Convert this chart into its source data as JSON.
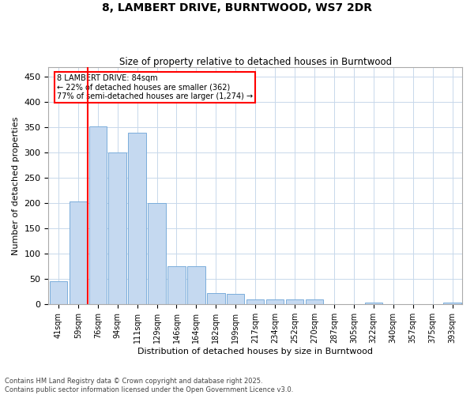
{
  "title_line1": "8, LAMBERT DRIVE, BURNTWOOD, WS7 2DR",
  "title_line2": "Size of property relative to detached houses in Burntwood",
  "xlabel": "Distribution of detached houses by size in Burntwood",
  "ylabel": "Number of detached properties",
  "categories": [
    "41sqm",
    "59sqm",
    "76sqm",
    "94sqm",
    "111sqm",
    "129sqm",
    "146sqm",
    "164sqm",
    "182sqm",
    "199sqm",
    "217sqm",
    "234sqm",
    "252sqm",
    "270sqm",
    "287sqm",
    "305sqm",
    "322sqm",
    "340sqm",
    "357sqm",
    "375sqm",
    "393sqm"
  ],
  "values": [
    45,
    203,
    352,
    300,
    340,
    200,
    75,
    75,
    22,
    20,
    10,
    10,
    10,
    10,
    0,
    0,
    4,
    0,
    0,
    0,
    3
  ],
  "bar_color": "#c5d9f0",
  "bar_edge_color": "#7aaddb",
  "grid_color": "#c8d8eb",
  "background_color": "#ffffff",
  "vline_bar_index": 2,
  "vline_color": "red",
  "annotation_text": "8 LAMBERT DRIVE: 84sqm\n← 22% of detached houses are smaller (362)\n77% of semi-detached houses are larger (1,274) →",
  "annotation_box_color": "red",
  "ylim": [
    0,
    470
  ],
  "yticks": [
    0,
    50,
    100,
    150,
    200,
    250,
    300,
    350,
    400,
    450
  ],
  "footnote": "Contains HM Land Registry data © Crown copyright and database right 2025.\nContains public sector information licensed under the Open Government Licence v3.0."
}
